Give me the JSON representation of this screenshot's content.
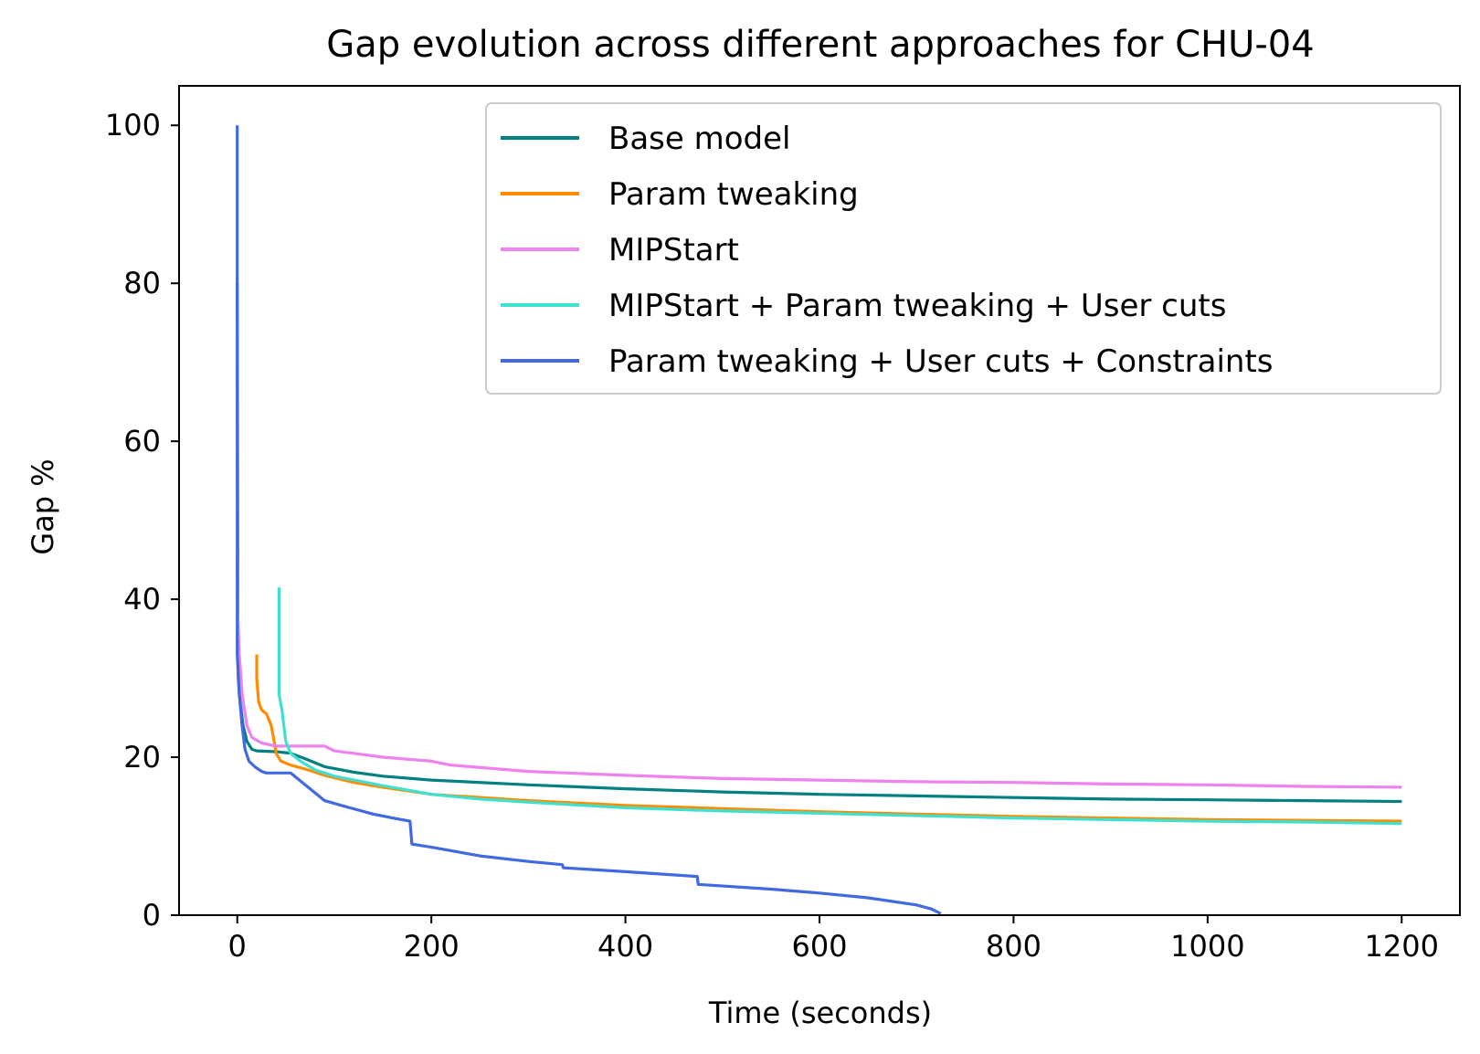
{
  "chart_data": {
    "type": "line",
    "title": "Gap evolution across different approaches for CHU-04",
    "xlabel": "Time (seconds)",
    "ylabel": "Gap %",
    "xlim": [
      -60,
      1260
    ],
    "ylim": [
      0,
      105
    ],
    "xticks": [
      0,
      200,
      400,
      600,
      800,
      1000,
      1200
    ],
    "yticks": [
      0,
      20,
      40,
      60,
      80,
      100
    ],
    "grid": false,
    "legend_position": "top-right",
    "series": [
      {
        "name": "Base model",
        "color": "#008080",
        "points": [
          [
            0,
            80
          ],
          [
            0.5,
            40
          ],
          [
            1,
            30
          ],
          [
            3,
            27
          ],
          [
            6,
            24
          ],
          [
            10,
            22
          ],
          [
            15,
            21
          ],
          [
            20,
            20.8
          ],
          [
            40,
            20.7
          ],
          [
            55,
            20.5
          ],
          [
            70,
            19.8
          ],
          [
            90,
            18.8
          ],
          [
            120,
            18.1
          ],
          [
            150,
            17.6
          ],
          [
            200,
            17.1
          ],
          [
            300,
            16.5
          ],
          [
            400,
            16
          ],
          [
            500,
            15.6
          ],
          [
            600,
            15.3
          ],
          [
            700,
            15.1
          ],
          [
            800,
            14.9
          ],
          [
            900,
            14.7
          ],
          [
            1000,
            14.6
          ],
          [
            1100,
            14.5
          ],
          [
            1200,
            14.4
          ]
        ]
      },
      {
        "name": "Param tweaking",
        "color": "#ff8c00",
        "points": [
          [
            20,
            33
          ],
          [
            20,
            30
          ],
          [
            22,
            27
          ],
          [
            25,
            26
          ],
          [
            30,
            25.5
          ],
          [
            35,
            24
          ],
          [
            38,
            22
          ],
          [
            40,
            20.5
          ],
          [
            45,
            19.5
          ],
          [
            55,
            19
          ],
          [
            70,
            18.5
          ],
          [
            90,
            17.7
          ],
          [
            120,
            16.8
          ],
          [
            150,
            16.2
          ],
          [
            200,
            15.3
          ],
          [
            300,
            14.5
          ],
          [
            400,
            13.9
          ],
          [
            500,
            13.5
          ],
          [
            600,
            13.1
          ],
          [
            700,
            12.8
          ],
          [
            800,
            12.5
          ],
          [
            900,
            12.3
          ],
          [
            1000,
            12.1
          ],
          [
            1100,
            12
          ],
          [
            1200,
            11.9
          ]
        ]
      },
      {
        "name": "MIPStart",
        "color": "#ee82ee",
        "points": [
          [
            0,
            45
          ],
          [
            0.5,
            38
          ],
          [
            2,
            33
          ],
          [
            5,
            28
          ],
          [
            10,
            24
          ],
          [
            15,
            22.5
          ],
          [
            25,
            21.8
          ],
          [
            40,
            21.4
          ],
          [
            70,
            21.4
          ],
          [
            90,
            21.4
          ],
          [
            100,
            20.8
          ],
          [
            150,
            20
          ],
          [
            200,
            19.5
          ],
          [
            220,
            19
          ],
          [
            300,
            18.2
          ],
          [
            400,
            17.7
          ],
          [
            500,
            17.3
          ],
          [
            600,
            17.1
          ],
          [
            700,
            16.9
          ],
          [
            800,
            16.8
          ],
          [
            900,
            16.6
          ],
          [
            1000,
            16.5
          ],
          [
            1100,
            16.3
          ],
          [
            1200,
            16.2
          ]
        ]
      },
      {
        "name": "MIPStart + Param tweaking + User cuts",
        "color": "#40e0d0",
        "points": [
          [
            43,
            41.5
          ],
          [
            43,
            28
          ],
          [
            46,
            26
          ],
          [
            50,
            22
          ],
          [
            55,
            20.5
          ],
          [
            65,
            19.5
          ],
          [
            80,
            18.4
          ],
          [
            100,
            17.6
          ],
          [
            150,
            16.4
          ],
          [
            200,
            15.3
          ],
          [
            250,
            14.7
          ],
          [
            300,
            14.3
          ],
          [
            400,
            13.6
          ],
          [
            500,
            13.2
          ],
          [
            600,
            12.9
          ],
          [
            700,
            12.6
          ],
          [
            800,
            12.3
          ],
          [
            900,
            12.1
          ],
          [
            1000,
            11.9
          ],
          [
            1100,
            11.8
          ],
          [
            1200,
            11.6
          ]
        ]
      },
      {
        "name": "Param tweaking + User cuts + Constraints",
        "color": "#4169e1",
        "points": [
          [
            0,
            100
          ],
          [
            0,
            33
          ],
          [
            2,
            28
          ],
          [
            5,
            24
          ],
          [
            8,
            21
          ],
          [
            12,
            19.5
          ],
          [
            18,
            18.8
          ],
          [
            25,
            18.2
          ],
          [
            30,
            18
          ],
          [
            45,
            18
          ],
          [
            55,
            18
          ],
          [
            65,
            17
          ],
          [
            75,
            16
          ],
          [
            90,
            14.5
          ],
          [
            110,
            13.8
          ],
          [
            140,
            12.8
          ],
          [
            160,
            12.3
          ],
          [
            178,
            11.9
          ],
          [
            180,
            9
          ],
          [
            200,
            8.6
          ],
          [
            250,
            7.5
          ],
          [
            300,
            6.8
          ],
          [
            335,
            6.4
          ],
          [
            336,
            6
          ],
          [
            400,
            5.5
          ],
          [
            474,
            4.9
          ],
          [
            475,
            3.9
          ],
          [
            550,
            3.3
          ],
          [
            600,
            2.8
          ],
          [
            650,
            2.2
          ],
          [
            700,
            1.3
          ],
          [
            715,
            0.8
          ],
          [
            725,
            0.2
          ]
        ]
      }
    ]
  }
}
